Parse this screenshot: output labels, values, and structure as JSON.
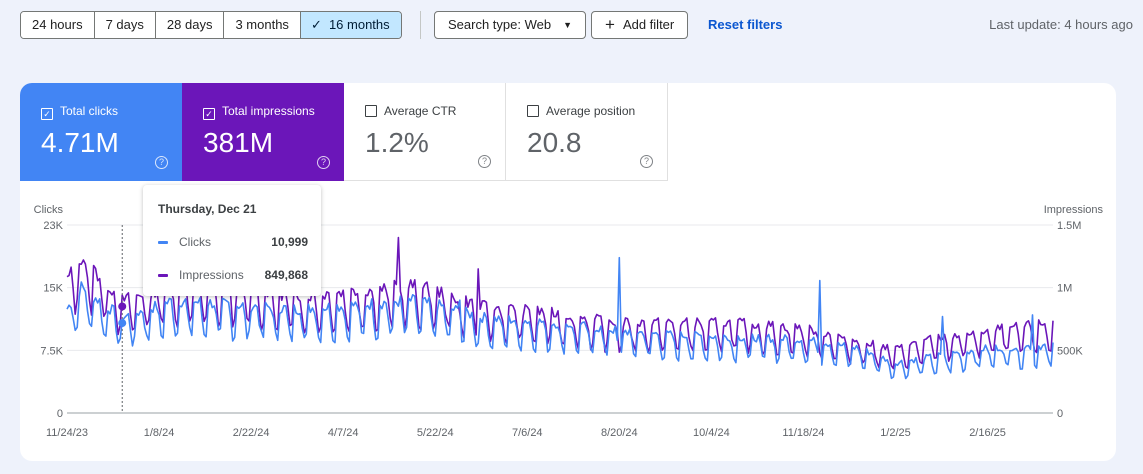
{
  "date_range": {
    "options": [
      {
        "label": "24 hours",
        "active": false
      },
      {
        "label": "7 days",
        "active": false
      },
      {
        "label": "28 days",
        "active": false
      },
      {
        "label": "3 months",
        "active": false
      },
      {
        "label": "16 months",
        "active": true
      }
    ],
    "check_glyph": "✓"
  },
  "filters": {
    "search_type_label": "Search type: Web",
    "add_filter_label": "Add filter",
    "reset_label": "Reset filters"
  },
  "last_update": "Last update: 4 hours ago",
  "metrics": {
    "clicks": {
      "label": "Total clicks",
      "value": "4.71M",
      "checked": true,
      "color": "#4285f4"
    },
    "impressions": {
      "label": "Total impressions",
      "value": "381M",
      "checked": true,
      "color": "#6b16b9"
    },
    "ctr": {
      "label": "Average CTR",
      "value": "1.2%",
      "checked": false
    },
    "position": {
      "label": "Average position",
      "value": "20.8",
      "checked": false
    }
  },
  "tooltip": {
    "date": "Thursday, Dec 21",
    "rows": [
      {
        "name": "Clicks",
        "value": "10,999",
        "color": "#4285f4"
      },
      {
        "name": "Impressions",
        "value": "849,868",
        "color": "#6b16b9"
      }
    ]
  },
  "chart_data": {
    "type": "line",
    "x_range": [
      "2023-11-24",
      "2025-03-20"
    ],
    "x_ticks": [
      "11/24/23",
      "1/8/24",
      "2/22/24",
      "4/7/24",
      "5/22/24",
      "7/6/24",
      "8/20/24",
      "10/4/24",
      "11/18/24",
      "1/2/25",
      "2/16/25"
    ],
    "y_left": {
      "label": "Clicks",
      "ticks": [
        "0",
        "7.5K",
        "15K",
        "23K"
      ],
      "ylim": [
        0,
        23000
      ]
    },
    "y_right": {
      "label": "Impressions",
      "ticks": [
        "0",
        "500K",
        "1M",
        "1.5M"
      ],
      "ylim": [
        0,
        1500000
      ]
    },
    "grid": true,
    "hover_date": "2023-12-21",
    "series": [
      {
        "name": "Clicks",
        "axis": "left",
        "color": "#4285f4",
        "anchors": [
          [
            "2023-11-24",
            12000
          ],
          [
            "2023-12-01",
            14500
          ],
          [
            "2023-12-21",
            10999
          ],
          [
            "2024-01-15",
            13000
          ],
          [
            "2024-02-15",
            12500
          ],
          [
            "2024-03-15",
            12000
          ],
          [
            "2024-04-15",
            12500
          ],
          [
            "2024-05-10",
            13000
          ],
          [
            "2024-05-22",
            12500
          ],
          [
            "2024-06-15",
            11000
          ],
          [
            "2024-07-15",
            10500
          ],
          [
            "2024-08-10",
            9800
          ],
          [
            "2024-08-20",
            9500
          ],
          [
            "2024-09-15",
            9000
          ],
          [
            "2024-10-15",
            8800
          ],
          [
            "2024-11-18",
            8500
          ],
          [
            "2024-12-15",
            7500
          ],
          [
            "2025-01-02",
            5800
          ],
          [
            "2025-01-20",
            6500
          ],
          [
            "2025-02-16",
            7500
          ],
          [
            "2025-03-20",
            7800
          ]
        ],
        "spikes": [
          [
            "2024-08-20",
            19000
          ],
          [
            "2024-11-26",
            16200
          ],
          [
            "2024-06-03",
            13800
          ],
          [
            "2025-01-25",
            11800
          ],
          [
            "2025-03-10",
            12000
          ]
        ]
      },
      {
        "name": "Impressions",
        "axis": "right",
        "color": "#6b16b9",
        "anchors": [
          [
            "2023-11-24",
            1000000
          ],
          [
            "2023-12-01",
            1180000
          ],
          [
            "2023-12-21",
            849868
          ],
          [
            "2024-01-15",
            960000
          ],
          [
            "2024-02-15",
            960000
          ],
          [
            "2024-03-15",
            880000
          ],
          [
            "2024-04-15",
            920000
          ],
          [
            "2024-05-10",
            960000
          ],
          [
            "2024-05-22",
            920000
          ],
          [
            "2024-06-15",
            800000
          ],
          [
            "2024-07-15",
            760000
          ],
          [
            "2024-08-10",
            700000
          ],
          [
            "2024-08-20",
            680000
          ],
          [
            "2024-09-15",
            680000
          ],
          [
            "2024-10-15",
            680000
          ],
          [
            "2024-11-18",
            640000
          ],
          [
            "2024-12-15",
            540000
          ],
          [
            "2025-01-02",
            480000
          ],
          [
            "2025-01-20",
            560000
          ],
          [
            "2025-02-16",
            620000
          ],
          [
            "2025-03-20",
            680000
          ]
        ],
        "spikes": [
          [
            "2024-05-04",
            1400000
          ],
          [
            "2024-06-12",
            1150000
          ]
        ]
      }
    ]
  }
}
